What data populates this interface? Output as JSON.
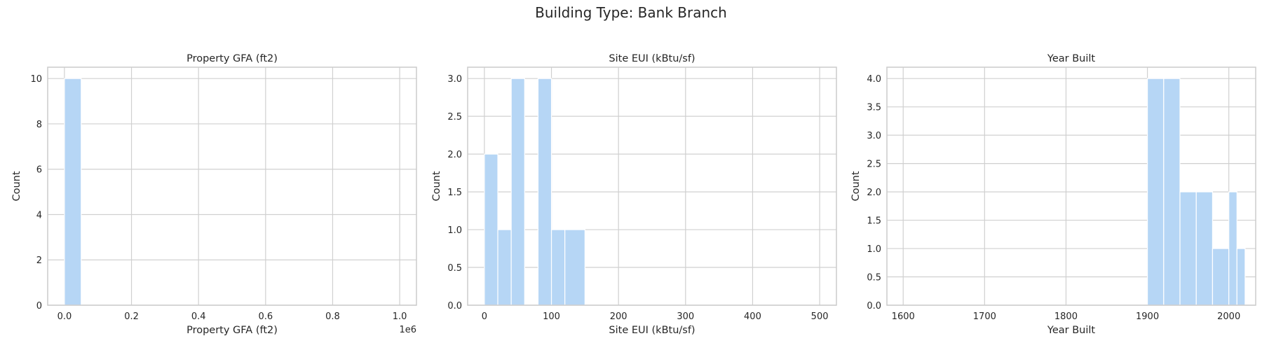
{
  "figure": {
    "title": "Building Type: Bank Branch"
  },
  "colors": {
    "bar": "#b6d6f5",
    "grid": "#d0d0d0",
    "axes_edge": "#cccccc",
    "text": "#262626"
  },
  "chart_data": [
    {
      "type": "bar",
      "title": "Property GFA (ft2)",
      "xlabel": "Property GFA (ft2)",
      "ylabel": "Count",
      "x_offset_label": "1e6",
      "xlim": [
        -50000,
        1050000
      ],
      "ylim": [
        0,
        10.5
      ],
      "xticks": [
        0,
        200000,
        400000,
        600000,
        800000,
        1000000
      ],
      "xtick_labels": [
        "0.0",
        "0.2",
        "0.4",
        "0.6",
        "0.8",
        "1.0"
      ],
      "yticks": [
        0,
        2,
        4,
        6,
        8,
        10
      ],
      "ytick_labels": [
        "0",
        "2",
        "4",
        "6",
        "8",
        "10"
      ],
      "grid": true,
      "bins": [
        {
          "x0": 0,
          "x1": 50000,
          "count": 10
        }
      ]
    },
    {
      "type": "bar",
      "title": "Site EUI (kBtu/sf)",
      "xlabel": "Site EUI (kBtu/sf)",
      "ylabel": "Count",
      "xlim": [
        -25,
        525
      ],
      "ylim": [
        0,
        3.15
      ],
      "xticks": [
        0,
        100,
        200,
        300,
        400,
        500
      ],
      "xtick_labels": [
        "0",
        "100",
        "200",
        "300",
        "400",
        "500"
      ],
      "yticks": [
        0,
        0.5,
        1.0,
        1.5,
        2.0,
        2.5,
        3.0
      ],
      "ytick_labels": [
        "0.0",
        "0.5",
        "1.0",
        "1.5",
        "2.0",
        "2.5",
        "3.0"
      ],
      "grid": true,
      "bins": [
        {
          "x0": 0,
          "x1": 20,
          "count": 2
        },
        {
          "x0": 20,
          "x1": 40,
          "count": 1
        },
        {
          "x0": 40,
          "x1": 60,
          "count": 3
        },
        {
          "x0": 80,
          "x1": 100,
          "count": 3
        },
        {
          "x0": 100,
          "x1": 120,
          "count": 1
        },
        {
          "x0": 120,
          "x1": 150,
          "count": 1
        }
      ]
    },
    {
      "type": "bar",
      "title": "Year Built",
      "xlabel": "Year Built",
      "ylabel": "Count",
      "xlim": [
        1580,
        2033
      ],
      "ylim": [
        0,
        4.2
      ],
      "xticks": [
        1600,
        1700,
        1800,
        1900,
        2000
      ],
      "xtick_labels": [
        "1600",
        "1700",
        "1800",
        "1900",
        "2000"
      ],
      "yticks": [
        0,
        0.5,
        1.0,
        1.5,
        2.0,
        2.5,
        3.0,
        3.5,
        4.0
      ],
      "ytick_labels": [
        "0.0",
        "0.5",
        "1.0",
        "1.5",
        "2.0",
        "2.5",
        "3.0",
        "3.5",
        "4.0"
      ],
      "grid": true,
      "bins": [
        {
          "x0": 1900,
          "x1": 1920,
          "count": 4
        },
        {
          "x0": 1920,
          "x1": 1940,
          "count": 4
        },
        {
          "x0": 1940,
          "x1": 1960,
          "count": 2
        },
        {
          "x0": 1960,
          "x1": 1980,
          "count": 2
        },
        {
          "x0": 1980,
          "x1": 2000,
          "count": 1
        },
        {
          "x0": 2000,
          "x1": 2010,
          "count": 2
        },
        {
          "x0": 2010,
          "x1": 2020,
          "count": 1
        }
      ]
    }
  ]
}
